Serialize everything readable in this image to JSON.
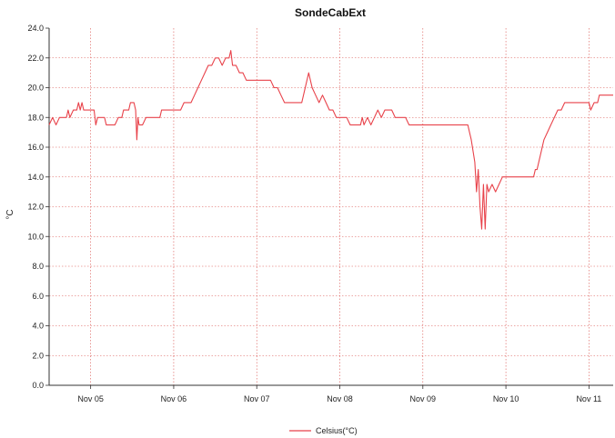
{
  "chart_data": {
    "type": "line",
    "title": "SondeCabExt",
    "xlabel": "",
    "ylabel": "°C",
    "ylim": [
      0,
      24
    ],
    "yticks": [
      "0.0",
      "2.0",
      "4.0",
      "6.0",
      "8.0",
      "10.0",
      "12.0",
      "14.0",
      "16.0",
      "18.0",
      "20.0",
      "22.0",
      "24.0"
    ],
    "xlim": [
      "Nov 04 12:00",
      "Nov 11 07:00"
    ],
    "xticks": [
      {
        "at": "Nov 05",
        "label": "Nov 05"
      },
      {
        "at": "Nov 06",
        "label": "Nov 06"
      },
      {
        "at": "Nov 07",
        "label": "Nov 07"
      },
      {
        "at": "Nov 08",
        "label": "Nov 08"
      },
      {
        "at": "Nov 09",
        "label": "Nov 09"
      },
      {
        "at": "Nov 10",
        "label": "Nov 10"
      },
      {
        "at": "Nov 11",
        "label": "Nov 11"
      }
    ],
    "grid": true,
    "legend_position": "bottom-center",
    "colors": {
      "series": "#e8424a",
      "grid": "#d9534f",
      "axis": "#333333"
    },
    "series": [
      {
        "name": "Celsius(°C)",
        "points": [
          [
            "Nov 04 12:00",
            17.5
          ],
          [
            "Nov 04 13:00",
            18.0
          ],
          [
            "Nov 04 14:00",
            17.5
          ],
          [
            "Nov 04 15:00",
            18.0
          ],
          [
            "Nov 04 17:00",
            18.0
          ],
          [
            "Nov 04 17:30",
            18.5
          ],
          [
            "Nov 04 18:00",
            18.0
          ],
          [
            "Nov 04 19:00",
            18.5
          ],
          [
            "Nov 04 20:00",
            18.5
          ],
          [
            "Nov 04 20:30",
            19.0
          ],
          [
            "Nov 04 21:00",
            18.5
          ],
          [
            "Nov 04 21:30",
            19.0
          ],
          [
            "Nov 04 22:00",
            18.5
          ],
          [
            "Nov 05 01:00",
            18.5
          ],
          [
            "Nov 05 01:30",
            17.5
          ],
          [
            "Nov 05 02:00",
            18.0
          ],
          [
            "Nov 05 04:00",
            18.0
          ],
          [
            "Nov 05 04:30",
            17.5
          ],
          [
            "Nov 05 07:00",
            17.5
          ],
          [
            "Nov 05 08:00",
            18.0
          ],
          [
            "Nov 05 09:00",
            18.0
          ],
          [
            "Nov 05 09:30",
            18.5
          ],
          [
            "Nov 05 11:00",
            18.5
          ],
          [
            "Nov 05 11:30",
            19.0
          ],
          [
            "Nov 05 12:30",
            19.0
          ],
          [
            "Nov 05 13:00",
            18.5
          ],
          [
            "Nov 05 13:20",
            16.5
          ],
          [
            "Nov 05 13:40",
            18.0
          ],
          [
            "Nov 05 14:00",
            17.5
          ],
          [
            "Nov 05 15:00",
            17.5
          ],
          [
            "Nov 05 16:00",
            18.0
          ],
          [
            "Nov 05 20:00",
            18.0
          ],
          [
            "Nov 05 20:30",
            18.5
          ],
          [
            "Nov 06 02:00",
            18.5
          ],
          [
            "Nov 06 03:00",
            19.0
          ],
          [
            "Nov 06 05:00",
            19.0
          ],
          [
            "Nov 06 06:00",
            19.5
          ],
          [
            "Nov 06 07:00",
            20.0
          ],
          [
            "Nov 06 08:00",
            20.5
          ],
          [
            "Nov 06 09:00",
            21.0
          ],
          [
            "Nov 06 10:00",
            21.5
          ],
          [
            "Nov 06 11:00",
            21.5
          ],
          [
            "Nov 06 12:00",
            22.0
          ],
          [
            "Nov 06 13:00",
            22.0
          ],
          [
            "Nov 06 14:00",
            21.5
          ],
          [
            "Nov 06 15:00",
            22.0
          ],
          [
            "Nov 06 16:00",
            22.0
          ],
          [
            "Nov 06 16:30",
            22.5
          ],
          [
            "Nov 06 17:00",
            21.5
          ],
          [
            "Nov 06 18:00",
            21.5
          ],
          [
            "Nov 06 19:00",
            21.0
          ],
          [
            "Nov 06 20:00",
            21.0
          ],
          [
            "Nov 06 21:00",
            20.5
          ],
          [
            "Nov 07 04:00",
            20.5
          ],
          [
            "Nov 07 05:00",
            20.0
          ],
          [
            "Nov 07 06:00",
            20.0
          ],
          [
            "Nov 07 07:00",
            19.5
          ],
          [
            "Nov 07 08:00",
            19.0
          ],
          [
            "Nov 07 13:00",
            19.0
          ],
          [
            "Nov 07 14:00",
            20.0
          ],
          [
            "Nov 07 15:00",
            21.0
          ],
          [
            "Nov 07 16:00",
            20.0
          ],
          [
            "Nov 07 17:00",
            19.5
          ],
          [
            "Nov 07 18:00",
            19.0
          ],
          [
            "Nov 07 19:00",
            19.5
          ],
          [
            "Nov 07 20:00",
            19.0
          ],
          [
            "Nov 07 21:00",
            18.5
          ],
          [
            "Nov 07 22:00",
            18.5
          ],
          [
            "Nov 07 23:00",
            18.0
          ],
          [
            "Nov 08 02:00",
            18.0
          ],
          [
            "Nov 08 03:00",
            17.5
          ],
          [
            "Nov 08 06:00",
            17.5
          ],
          [
            "Nov 08 06:30",
            18.0
          ],
          [
            "Nov 08 07:00",
            17.5
          ],
          [
            "Nov 08 08:00",
            18.0
          ],
          [
            "Nov 08 09:00",
            17.5
          ],
          [
            "Nov 08 10:00",
            18.0
          ],
          [
            "Nov 08 11:00",
            18.5
          ],
          [
            "Nov 08 12:00",
            18.0
          ],
          [
            "Nov 08 13:00",
            18.5
          ],
          [
            "Nov 08 15:00",
            18.5
          ],
          [
            "Nov 08 16:00",
            18.0
          ],
          [
            "Nov 08 19:00",
            18.0
          ],
          [
            "Nov 08 20:00",
            17.5
          ],
          [
            "Nov 09 13:00",
            17.5
          ],
          [
            "Nov 09 13:30",
            17.0
          ],
          [
            "Nov 09 14:00",
            16.5
          ],
          [
            "Nov 09 15:00",
            15.0
          ],
          [
            "Nov 09 15:30",
            13.0
          ],
          [
            "Nov 09 16:00",
            14.5
          ],
          [
            "Nov 09 16:30",
            12.0
          ],
          [
            "Nov 09 17:00",
            10.5
          ],
          [
            "Nov 09 17:30",
            13.5
          ],
          [
            "Nov 09 18:00",
            10.5
          ],
          [
            "Nov 09 18:30",
            13.5
          ],
          [
            "Nov 09 19:00",
            13.0
          ],
          [
            "Nov 09 20:00",
            13.5
          ],
          [
            "Nov 09 21:00",
            13.0
          ],
          [
            "Nov 09 22:00",
            13.5
          ],
          [
            "Nov 09 23:00",
            14.0
          ],
          [
            "Nov 10 08:00",
            14.0
          ],
          [
            "Nov 10 08:30",
            14.5
          ],
          [
            "Nov 10 09:00",
            14.5
          ],
          [
            "Nov 10 10:00",
            15.5
          ],
          [
            "Nov 10 11:00",
            16.5
          ],
          [
            "Nov 10 12:00",
            17.0
          ],
          [
            "Nov 10 13:00",
            17.5
          ],
          [
            "Nov 10 14:00",
            18.0
          ],
          [
            "Nov 10 15:00",
            18.5
          ],
          [
            "Nov 10 16:00",
            18.5
          ],
          [
            "Nov 10 17:00",
            19.0
          ],
          [
            "Nov 11 00:00",
            19.0
          ],
          [
            "Nov 11 00:30",
            18.5
          ],
          [
            "Nov 11 01:30",
            19.0
          ],
          [
            "Nov 11 02:30",
            19.0
          ],
          [
            "Nov 11 03:00",
            19.5
          ],
          [
            "Nov 11 07:00",
            19.5
          ]
        ]
      }
    ]
  }
}
